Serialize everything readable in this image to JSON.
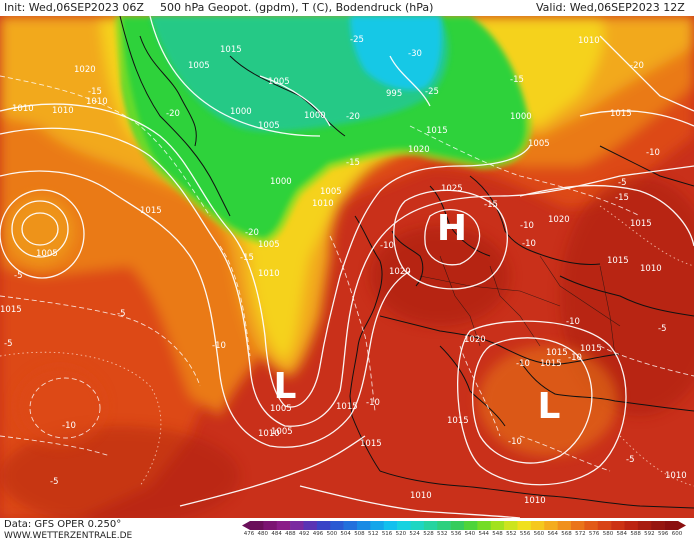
{
  "header": {
    "init_label": "Init: Wed,06SEP2023 06Z",
    "title": "500 hPa Geopot. (gpdm), T (C), Bodendruck (hPa)",
    "valid_label": "Valid: Wed,06SEP2023 12Z"
  },
  "footer": {
    "data_source": "Data: GFS OPER 0.250°",
    "website": "WWW.WETTERZENTRALE.DE"
  },
  "colorbar_ticks": [
    "476",
    "480",
    "484",
    "488",
    "492",
    "496",
    "500",
    "504",
    "508",
    "512",
    "516",
    "520",
    "524",
    "528",
    "532",
    "536",
    "540",
    "544",
    "548",
    "552",
    "556",
    "560",
    "564",
    "568",
    "572",
    "576",
    "580",
    "584",
    "588",
    "592",
    "596",
    "600"
  ],
  "pressure_centers": [
    {
      "letter": "H",
      "kind": "high"
    },
    {
      "letter": "L",
      "kind": "low-atlantic"
    },
    {
      "letter": "L",
      "kind": "low-mediterranean"
    }
  ],
  "isobar_labels": [
    "1005",
    "1010",
    "1020",
    "1010",
    "1010",
    "1005",
    "1015",
    "1005",
    "1000",
    "1005",
    "1015",
    "1000",
    "1000",
    "1005",
    "1005",
    "1010",
    "1015",
    "1020",
    "1025",
    "1020",
    "995",
    "1000",
    "1005",
    "1015",
    "1015",
    "1010",
    "1010",
    "1015",
    "1015",
    "1020",
    "1010",
    "1005",
    "1015",
    "1020",
    "1015",
    "1015",
    "1015",
    "1010",
    "1010",
    "1010",
    "1005",
    "1015",
    "1010",
    "1015",
    "1010"
  ],
  "temperature_labels": [
    "-15",
    "-25",
    "-20",
    "-15",
    "-20",
    "-15",
    "-25",
    "-30",
    "-20",
    "-15",
    "-15",
    "-15",
    "-10",
    "-10",
    "-20",
    "-5",
    "-5",
    "-10",
    "-10",
    "-10",
    "-5",
    "-10",
    "-10",
    "-5",
    "-10",
    "-10",
    "-10",
    "-5",
    "-5",
    "-10",
    "-5"
  ],
  "colors": {
    "deep_red": "#a81c10",
    "red": "#c9301a",
    "orange_red": "#dd4a17",
    "orange": "#ea7a18",
    "yellow_orange": "#f2a91f",
    "yellow": "#f5d21e",
    "lime": "#9ee21d",
    "green": "#2fd23a",
    "teal": "#22c7a0",
    "cyan": "#19c8e6",
    "contour_white": "#ffffff",
    "coastline": "#111111"
  }
}
